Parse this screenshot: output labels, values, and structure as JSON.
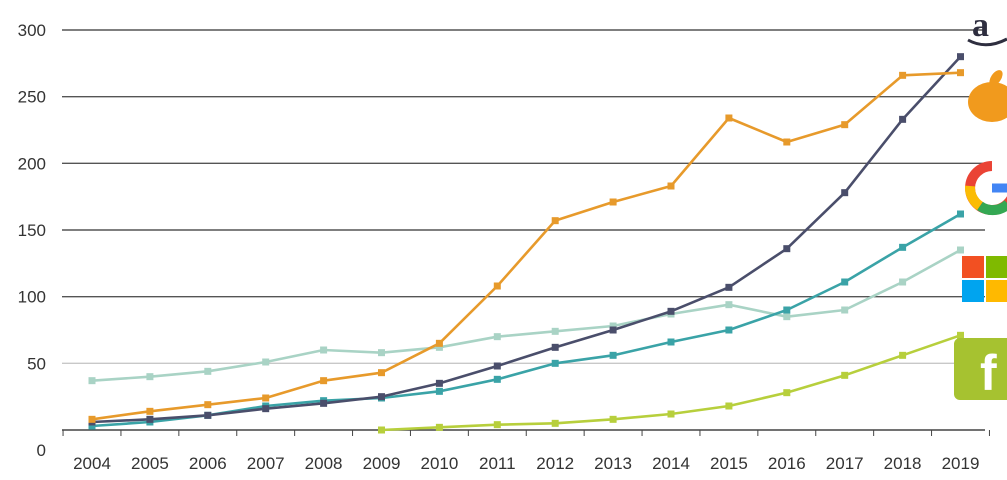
{
  "chart_data": {
    "type": "line",
    "title": "",
    "xlabel": "",
    "ylabel": "",
    "x": [
      "2004",
      "2005",
      "2006",
      "2007",
      "2008",
      "2009",
      "2010",
      "2011",
      "2012",
      "2013",
      "2014",
      "2015",
      "2016",
      "2017",
      "2018",
      "2019"
    ],
    "ylim": [
      0,
      300
    ],
    "yticks": [
      0,
      50,
      100,
      150,
      200,
      250,
      300
    ],
    "grid": true,
    "series": [
      {
        "logo": "amazon-logo-icon",
        "color": "#4a4e6b",
        "values": [
          6,
          8,
          11,
          16,
          20,
          25,
          35,
          48,
          62,
          75,
          89,
          107,
          136,
          178,
          233,
          280
        ]
      },
      {
        "logo": "apple-logo-icon",
        "color": "#e79a2b",
        "values": [
          8,
          14,
          19,
          24,
          37,
          43,
          65,
          108,
          157,
          171,
          183,
          234,
          216,
          229,
          266,
          268
        ]
      },
      {
        "logo": "google-logo-icon",
        "color": "#3aa3a7",
        "values": [
          3,
          6,
          11,
          18,
          22,
          24,
          29,
          38,
          50,
          56,
          66,
          75,
          90,
          111,
          137,
          162
        ]
      },
      {
        "logo": "microsoft-logo-icon",
        "color": "#a9d3c5",
        "values": [
          37,
          40,
          44,
          51,
          60,
          58,
          62,
          70,
          74,
          78,
          87,
          94,
          85,
          90,
          111,
          135
        ]
      },
      {
        "logo": "facebook-logo-icon",
        "color": "#b7cf3c",
        "values": [
          null,
          null,
          null,
          null,
          null,
          0,
          2,
          4,
          5,
          8,
          12,
          18,
          28,
          41,
          56,
          71
        ]
      }
    ]
  }
}
